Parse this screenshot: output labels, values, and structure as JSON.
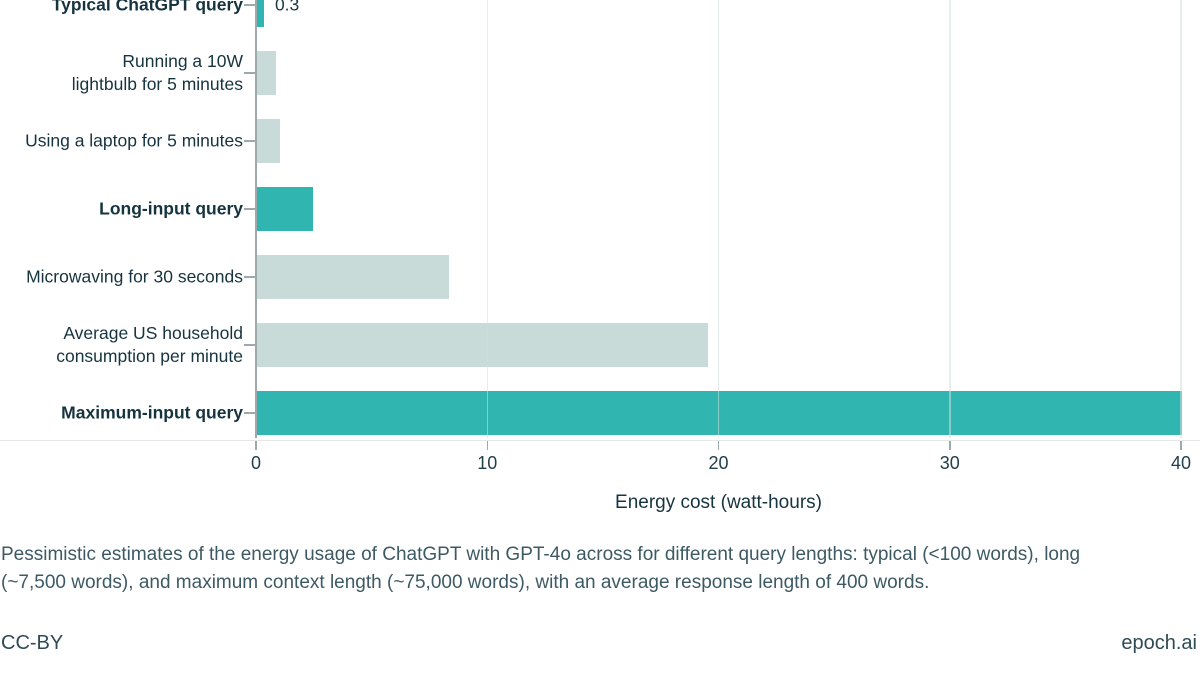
{
  "chart_data": {
    "type": "bar",
    "orientation": "horizontal",
    "xlabel": "Energy cost (watt-hours)",
    "xlim": [
      0,
      40
    ],
    "xticks": [
      0,
      10,
      20,
      30,
      40
    ],
    "gridlines": [
      10,
      20,
      30,
      40
    ],
    "grid": true,
    "legend": false,
    "categories": [
      "Typical ChatGPT query",
      "Running a 10W\nlightbulb for 5 minutes",
      "Using a laptop for 5 minutes",
      "Long-input query",
      "Microwaving for 30 seconds",
      "Average US household\nconsumption per minute",
      "Maximum-input query"
    ],
    "values": [
      0.3,
      0.8,
      1.0,
      2.4,
      8.3,
      19.5,
      40
    ],
    "rows": [
      {
        "label": "Typical ChatGPT query",
        "value": 0.3,
        "highlight": true,
        "value_label": "0.3"
      },
      {
        "label": "Running a 10W\nlightbulb for 5 minutes",
        "value": 0.8,
        "highlight": false,
        "value_label": ""
      },
      {
        "label": "Using a laptop for 5 minutes",
        "value": 1.0,
        "highlight": false,
        "value_label": ""
      },
      {
        "label": "Long-input query",
        "value": 2.4,
        "highlight": true,
        "value_label": ""
      },
      {
        "label": "Microwaving for 30 seconds",
        "value": 8.3,
        "highlight": false,
        "value_label": ""
      },
      {
        "label": "Average US household\nconsumption per minute",
        "value": 19.5,
        "highlight": false,
        "value_label": ""
      },
      {
        "label": "Maximum-input query",
        "value": 40,
        "highlight": true,
        "value_label": ""
      }
    ],
    "colors": {
      "highlight": "#31b5b0",
      "muted": "#c9dbd9",
      "axis": "#9fa9ac",
      "grid_overlay": "rgba(205,224,222,0.55)",
      "text": "#16343f"
    }
  },
  "caption": {
    "lines": [
      "Pessimistic estimates of the energy usage of ChatGPT with GPT-4o across for different query lengths: typical (<100 words), long",
      "(~7,500 words), and maximum context length (~75,000 words), with an average response length of 400 words."
    ]
  },
  "footer": {
    "license": "CC-BY",
    "brand": "epoch.ai"
  }
}
